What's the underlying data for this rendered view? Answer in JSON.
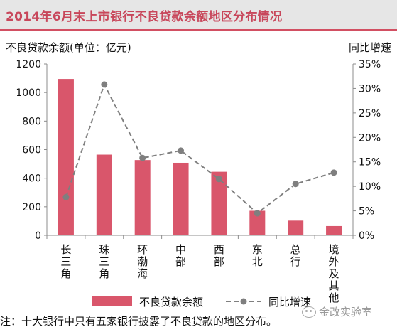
{
  "chart_data": {
    "type": "bar",
    "title": "2014年6月末上市银行不良贷款余额地区分布情况",
    "ylabel_left": "不良贷款余额(单位：亿元)",
    "ylabel_right": "同比增速",
    "categories": [
      "长三角",
      "珠三角",
      "环渤海",
      "中部",
      "西部",
      "东北",
      "总行",
      "境外及其他"
    ],
    "series": [
      {
        "name": "不良贷款余额",
        "type": "bar",
        "axis": "left",
        "color": "#d9566b",
        "values": [
          1095,
          565,
          527,
          508,
          445,
          172,
          103,
          65
        ]
      },
      {
        "name": "同比增速",
        "type": "line",
        "axis": "right",
        "color": "#7f7f7f",
        "style": "dashed",
        "values": [
          7.8,
          30.8,
          15.8,
          17.3,
          11.5,
          4.5,
          10.5,
          12.8
        ]
      }
    ],
    "ylim_left": [
      0,
      1200
    ],
    "yticks_left": [
      "0",
      "200",
      "400",
      "600",
      "800",
      "1000",
      "1200"
    ],
    "ylim_right": [
      0,
      35
    ],
    "yticks_right": [
      "0%",
      "5%",
      "10%",
      "15%",
      "20%",
      "25%",
      "30%",
      "35%"
    ],
    "grid": false,
    "legend_position": "bottom"
  },
  "note": "注：十大银行中只有五家银行披露了不良贷款的地区分布。",
  "watermark": "金改实验室",
  "colors": {
    "bar": "#d9566b",
    "line": "#7f7f7f",
    "title": "#c8475b",
    "title_bg": "#e6e6e6"
  }
}
